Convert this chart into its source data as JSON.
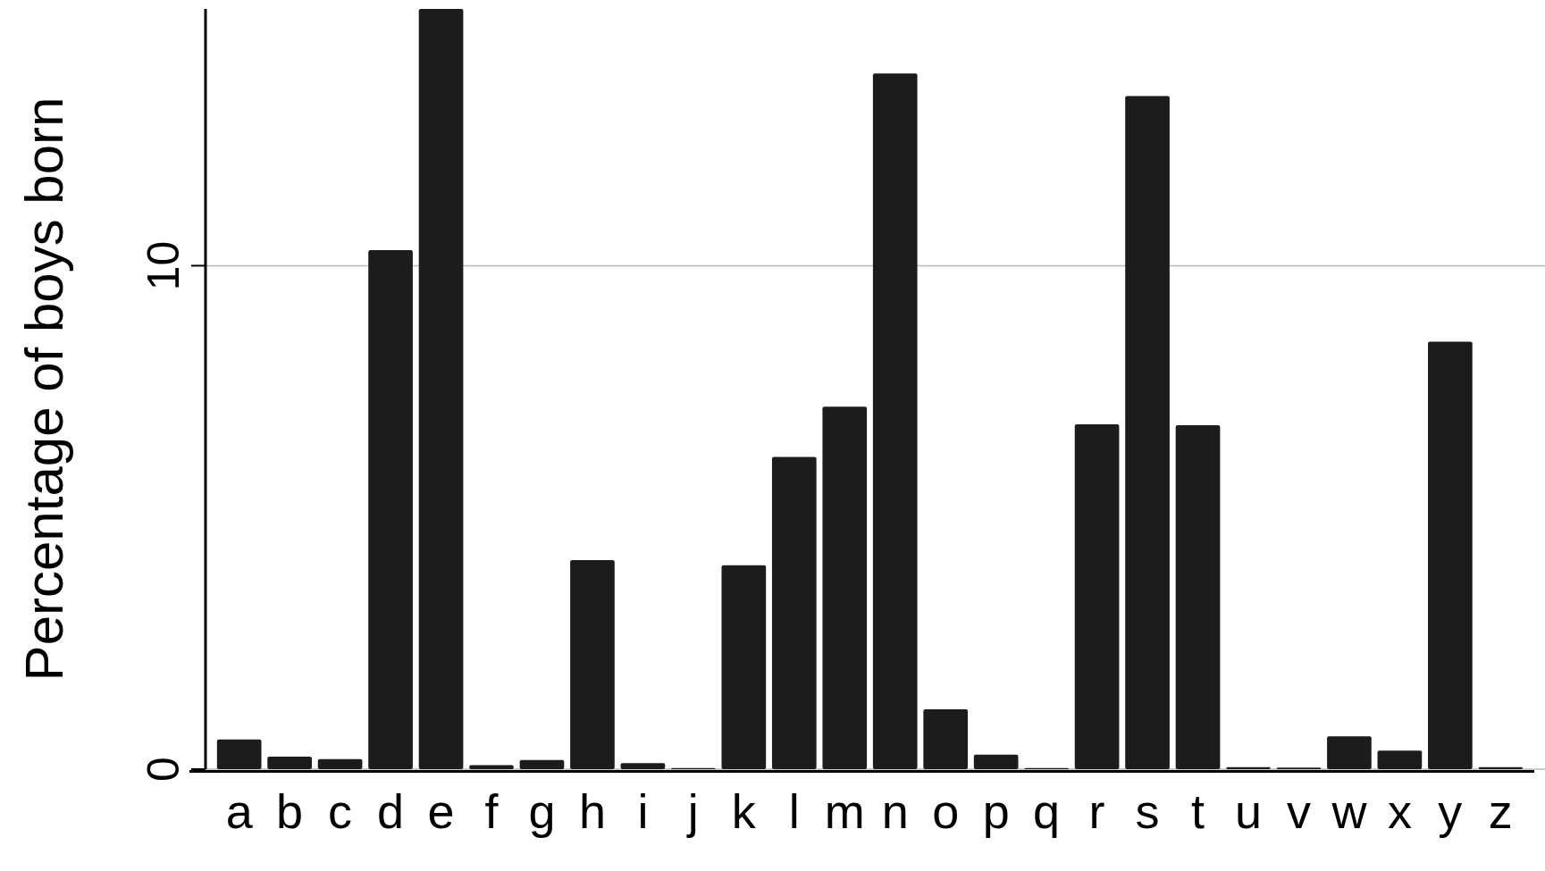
{
  "chart_data": {
    "type": "bar",
    "ylabel": "Percentage of boys born",
    "categories": [
      "a",
      "b",
      "c",
      "d",
      "e",
      "f",
      "g",
      "h",
      "i",
      "j",
      "k",
      "l",
      "m",
      "n",
      "o",
      "p",
      "q",
      "r",
      "s",
      "t",
      "u",
      "v",
      "w",
      "x",
      "y",
      "z"
    ],
    "values": [
      0.59,
      0.25,
      0.2,
      10.31,
      15.1,
      0.08,
      0.18,
      4.15,
      0.12,
      0.02,
      4.05,
      6.2,
      7.2,
      13.82,
      1.19,
      0.29,
      0.02,
      6.85,
      13.37,
      6.83,
      0.04,
      0.03,
      0.65,
      0.37,
      8.49,
      0.04
    ],
    "color": "#1c1c1c",
    "ylim": [
      0,
      15.1
    ],
    "yticks": [
      0,
      10
    ],
    "grid": "y"
  }
}
